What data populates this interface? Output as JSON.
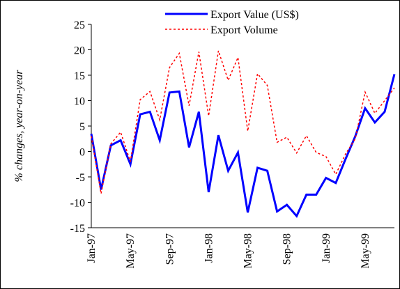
{
  "chart_data": {
    "type": "line",
    "y_label": "% changes, year-on-year",
    "categories": [
      "Jan-97",
      null,
      null,
      null,
      "May-97",
      null,
      null,
      null,
      "Sep-97",
      null,
      null,
      null,
      "Jan-98",
      null,
      null,
      null,
      "May-98",
      null,
      null,
      null,
      "Sep-98",
      null,
      null,
      null,
      "Jan-99",
      null,
      null,
      null,
      "May-99",
      null,
      null,
      null
    ],
    "series": [
      {
        "name": "Export Value (US$)",
        "color": "#0000ff",
        "dash": "solid",
        "values": [
          3.5,
          -7.5,
          1.2,
          2.2,
          -2.5,
          7.3,
          7.8,
          2.2,
          11.6,
          11.8,
          0.8,
          7.8,
          -8,
          3.2,
          -3.8,
          -0.2,
          -12,
          -3.2,
          -3.8,
          -11.8,
          -10.5,
          -12.7,
          -8.5,
          -8.5,
          -5.2,
          -6.2,
          -1.5,
          3,
          8.5,
          5.7,
          7.8,
          15.2
        ]
      },
      {
        "name": "Export Volume",
        "color": "#ff0000",
        "dash": "dashed",
        "values": [
          3,
          -8.3,
          1.5,
          3.8,
          -2,
          10.2,
          11.8,
          6.2,
          16.5,
          19.3,
          9,
          19.6,
          7,
          19.8,
          14,
          18.5,
          4,
          15.3,
          13,
          1.8,
          2.8,
          -0.3,
          3.1,
          -0.2,
          -1,
          -4.5,
          -0.5,
          2.5,
          11.7,
          7.5,
          10,
          12.5
        ]
      }
    ],
    "ylim": [
      -15,
      25
    ],
    "yticks": [
      -15,
      -10,
      -5,
      0,
      5,
      10,
      15,
      20,
      25
    ]
  }
}
